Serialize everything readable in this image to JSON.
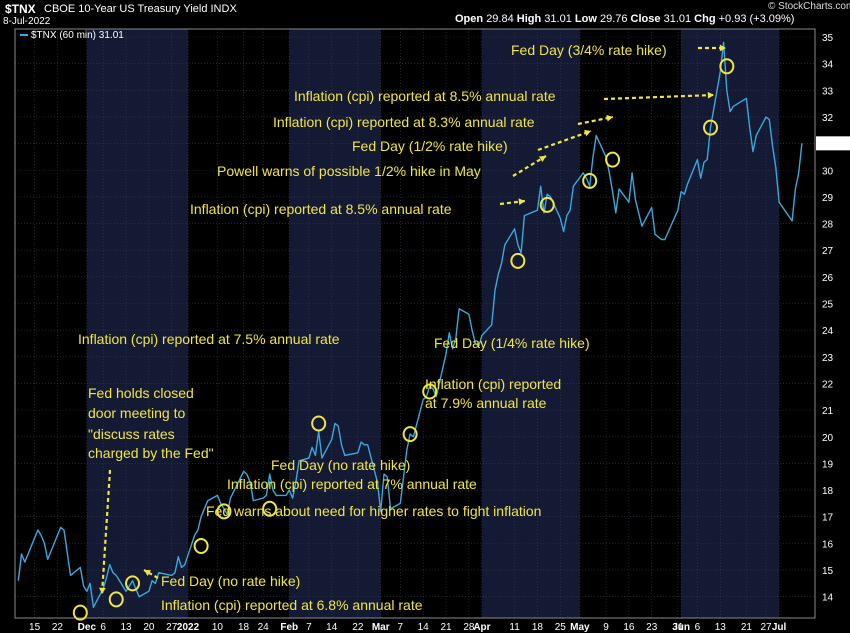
{
  "header": {
    "symbol": "$TNX",
    "title": "CBOE 10-Year US Treasury Yield INDX",
    "date": "8-Jul-2022",
    "open_label": "Open",
    "open": "29.84",
    "high_label": "High",
    "high": "31.01",
    "low_label": "Low",
    "low": "29.76",
    "close_label": "Close",
    "close": "31.01",
    "chg_label": "Chg",
    "chg": "+0.93 (+3.09%)",
    "credit": "© StockCharts.com"
  },
  "legend": {
    "label": "$TNX (60 min) 31.01"
  },
  "colors": {
    "line": "#39a8dc",
    "annotation": "#f0e641",
    "background": "#000000",
    "band_alt": "#141a33",
    "grid": "#3a3a50"
  },
  "chart_data": {
    "type": "line",
    "xlabel": "",
    "ylabel": "",
    "ylim": [
      13.2,
      35.3
    ],
    "y_ticks": [
      14,
      15,
      16,
      17,
      18,
      19,
      20,
      21,
      22,
      23,
      24,
      25,
      26,
      27,
      28,
      29,
      30,
      31,
      32,
      33,
      34,
      35
    ],
    "last_value_label": "31.01",
    "x_ticks": [
      {
        "label": "15",
        "date": "2021-11-15"
      },
      {
        "label": "22",
        "date": "2021-11-22"
      },
      {
        "label": "Dec",
        "date": "2021-12-01",
        "bold": true
      },
      {
        "label": "6",
        "date": "2021-12-06"
      },
      {
        "label": "13",
        "date": "2021-12-13"
      },
      {
        "label": "20",
        "date": "2021-12-20"
      },
      {
        "label": "27",
        "date": "2021-12-27"
      },
      {
        "label": "2022",
        "date": "2022-01-01",
        "bold": true
      },
      {
        "label": "10",
        "date": "2022-01-10"
      },
      {
        "label": "18",
        "date": "2022-01-18"
      },
      {
        "label": "24",
        "date": "2022-01-24"
      },
      {
        "label": "Feb",
        "date": "2022-02-01",
        "bold": true
      },
      {
        "label": "7",
        "date": "2022-02-07"
      },
      {
        "label": "14",
        "date": "2022-02-14"
      },
      {
        "label": "22",
        "date": "2022-02-22"
      },
      {
        "label": "Mar",
        "date": "2022-03-01",
        "bold": true
      },
      {
        "label": "7",
        "date": "2022-03-07"
      },
      {
        "label": "14",
        "date": "2022-03-14"
      },
      {
        "label": "21",
        "date": "2022-03-21"
      },
      {
        "label": "28",
        "date": "2022-03-28"
      },
      {
        "label": "Apr",
        "date": "2022-04-01",
        "bold": true
      },
      {
        "label": "11",
        "date": "2022-04-11"
      },
      {
        "label": "18",
        "date": "2022-04-18"
      },
      {
        "label": "25",
        "date": "2022-04-25"
      },
      {
        "label": "May",
        "date": "2022-05-01",
        "bold": true
      },
      {
        "label": "9",
        "date": "2022-05-09"
      },
      {
        "label": "16",
        "date": "2022-05-16"
      },
      {
        "label": "23",
        "date": "2022-05-23"
      },
      {
        "label": "31",
        "date": "2022-05-31"
      },
      {
        "label": "Jun",
        "date": "2022-06-01",
        "bold": true
      },
      {
        "label": "6",
        "date": "2022-06-06"
      },
      {
        "label": "13",
        "date": "2022-06-13"
      },
      {
        "label": "21",
        "date": "2022-06-21"
      },
      {
        "label": "27",
        "date": "2022-06-27"
      },
      {
        "label": "Jul",
        "date": "2022-07-01",
        "bold": true
      }
    ],
    "series": [
      {
        "name": "$TNX (60 min)",
        "points": [
          [
            "2021-11-10",
            14.6
          ],
          [
            "2021-11-11",
            15.6
          ],
          [
            "2021-11-12",
            15.3
          ],
          [
            "2021-11-15",
            16.2
          ],
          [
            "2021-11-16",
            16.5
          ],
          [
            "2021-11-17",
            16.3
          ],
          [
            "2021-11-18",
            16.0
          ],
          [
            "2021-11-19",
            15.4
          ],
          [
            "2021-11-22",
            16.3
          ],
          [
            "2021-11-23",
            16.6
          ],
          [
            "2021-11-24",
            16.5
          ],
          [
            "2021-11-26",
            14.8
          ],
          [
            "2021-11-29",
            15.1
          ],
          [
            "2021-11-30",
            14.4
          ],
          [
            "2021-12-01",
            14.2
          ],
          [
            "2021-12-02",
            14.5
          ],
          [
            "2021-12-03",
            13.6
          ],
          [
            "2021-12-06",
            14.3
          ],
          [
            "2021-12-07",
            14.7
          ],
          [
            "2021-12-08",
            15.2
          ],
          [
            "2021-12-09",
            14.9
          ],
          [
            "2021-12-10",
            14.8
          ],
          [
            "2021-12-13",
            14.2
          ],
          [
            "2021-12-14",
            14.4
          ],
          [
            "2021-12-15",
            14.6
          ],
          [
            "2021-12-16",
            14.3
          ],
          [
            "2021-12-17",
            14.0
          ],
          [
            "2021-12-20",
            14.2
          ],
          [
            "2021-12-21",
            14.6
          ],
          [
            "2021-12-22",
            14.5
          ],
          [
            "2021-12-23",
            14.9
          ],
          [
            "2021-12-27",
            14.8
          ],
          [
            "2021-12-28",
            14.9
          ],
          [
            "2021-12-29",
            15.5
          ],
          [
            "2021-12-30",
            15.1
          ],
          [
            "2021-12-31",
            15.2
          ],
          [
            "2022-01-03",
            16.3
          ],
          [
            "2022-01-04",
            16.5
          ],
          [
            "2022-01-05",
            17.0
          ],
          [
            "2022-01-06",
            17.3
          ],
          [
            "2022-01-07",
            17.6
          ],
          [
            "2022-01-10",
            17.8
          ],
          [
            "2022-01-11",
            17.5
          ],
          [
            "2022-01-12",
            17.3
          ],
          [
            "2022-01-13",
            17.1
          ],
          [
            "2022-01-14",
            17.7
          ],
          [
            "2022-01-18",
            18.7
          ],
          [
            "2022-01-19",
            18.6
          ],
          [
            "2022-01-20",
            18.3
          ],
          [
            "2022-01-21",
            17.6
          ],
          [
            "2022-01-24",
            17.7
          ],
          [
            "2022-01-25",
            17.8
          ],
          [
            "2022-01-26",
            18.6
          ],
          [
            "2022-01-27",
            18.0
          ],
          [
            "2022-01-28",
            17.8
          ],
          [
            "2022-01-31",
            17.8
          ],
          [
            "2022-02-01",
            18.0
          ],
          [
            "2022-02-02",
            17.7
          ],
          [
            "2022-02-03",
            18.3
          ],
          [
            "2022-02-04",
            19.1
          ],
          [
            "2022-02-07",
            19.2
          ],
          [
            "2022-02-08",
            19.6
          ],
          [
            "2022-02-09",
            19.3
          ],
          [
            "2022-02-10",
            20.2
          ],
          [
            "2022-02-11",
            19.2
          ],
          [
            "2022-02-14",
            19.9
          ],
          [
            "2022-02-15",
            20.5
          ],
          [
            "2022-02-16",
            20.4
          ],
          [
            "2022-02-17",
            19.7
          ],
          [
            "2022-02-18",
            19.3
          ],
          [
            "2022-02-22",
            19.4
          ],
          [
            "2022-02-23",
            19.8
          ],
          [
            "2022-02-24",
            19.7
          ],
          [
            "2022-02-25",
            19.7
          ],
          [
            "2022-02-28",
            18.3
          ],
          [
            "2022-03-01",
            17.2
          ],
          [
            "2022-03-02",
            18.6
          ],
          [
            "2022-03-03",
            18.5
          ],
          [
            "2022-03-04",
            17.3
          ],
          [
            "2022-03-07",
            17.5
          ],
          [
            "2022-03-08",
            18.5
          ],
          [
            "2022-03-09",
            19.5
          ],
          [
            "2022-03-10",
            20.1
          ],
          [
            "2022-03-11",
            20.0
          ],
          [
            "2022-03-14",
            21.4
          ],
          [
            "2022-03-15",
            21.5
          ],
          [
            "2022-03-16",
            21.9
          ],
          [
            "2022-03-17",
            21.8
          ],
          [
            "2022-03-18",
            21.5
          ],
          [
            "2022-03-21",
            23.1
          ],
          [
            "2022-03-22",
            23.9
          ],
          [
            "2022-03-23",
            23.3
          ],
          [
            "2022-03-24",
            23.7
          ],
          [
            "2022-03-25",
            24.8
          ],
          [
            "2022-03-28",
            24.6
          ],
          [
            "2022-03-29",
            24.0
          ],
          [
            "2022-03-30",
            23.5
          ],
          [
            "2022-03-31",
            23.4
          ],
          [
            "2022-04-01",
            23.8
          ],
          [
            "2022-04-04",
            24.2
          ],
          [
            "2022-04-05",
            25.5
          ],
          [
            "2022-04-06",
            26.1
          ],
          [
            "2022-04-07",
            26.5
          ],
          [
            "2022-04-08",
            27.2
          ],
          [
            "2022-04-11",
            27.8
          ],
          [
            "2022-04-12",
            27.2
          ],
          [
            "2022-04-13",
            26.9
          ],
          [
            "2022-04-14",
            28.3
          ],
          [
            "2022-04-18",
            28.5
          ],
          [
            "2022-04-19",
            29.4
          ],
          [
            "2022-04-20",
            28.4
          ],
          [
            "2022-04-21",
            29.1
          ],
          [
            "2022-04-22",
            29.0
          ],
          [
            "2022-04-25",
            28.2
          ],
          [
            "2022-04-26",
            27.7
          ],
          [
            "2022-04-27",
            28.3
          ],
          [
            "2022-04-28",
            28.5
          ],
          [
            "2022-04-29",
            29.4
          ],
          [
            "2022-05-02",
            29.9
          ],
          [
            "2022-05-03",
            29.7
          ],
          [
            "2022-05-04",
            29.4
          ],
          [
            "2022-05-05",
            30.5
          ],
          [
            "2022-05-06",
            31.3
          ],
          [
            "2022-05-09",
            30.5
          ],
          [
            "2022-05-10",
            29.9
          ],
          [
            "2022-05-11",
            29.2
          ],
          [
            "2022-05-12",
            28.4
          ],
          [
            "2022-05-13",
            29.3
          ],
          [
            "2022-05-16",
            28.8
          ],
          [
            "2022-05-17",
            29.9
          ],
          [
            "2022-05-18",
            28.9
          ],
          [
            "2022-05-19",
            28.4
          ],
          [
            "2022-05-20",
            27.9
          ],
          [
            "2022-05-23",
            28.6
          ],
          [
            "2022-05-24",
            27.6
          ],
          [
            "2022-05-25",
            27.5
          ],
          [
            "2022-05-26",
            27.4
          ],
          [
            "2022-05-27",
            27.4
          ],
          [
            "2022-05-31",
            28.5
          ],
          [
            "2022-06-01",
            29.2
          ],
          [
            "2022-06-02",
            29.1
          ],
          [
            "2022-06-03",
            29.5
          ],
          [
            "2022-06-06",
            30.4
          ],
          [
            "2022-06-07",
            29.7
          ],
          [
            "2022-06-08",
            30.3
          ],
          [
            "2022-06-09",
            30.4
          ],
          [
            "2022-06-10",
            31.6
          ],
          [
            "2022-06-13",
            33.7
          ],
          [
            "2022-06-14",
            34.8
          ],
          [
            "2022-06-15",
            33.0
          ],
          [
            "2022-06-16",
            32.2
          ],
          [
            "2022-06-17",
            32.4
          ],
          [
            "2022-06-21",
            32.7
          ],
          [
            "2022-06-22",
            31.6
          ],
          [
            "2022-06-23",
            30.7
          ],
          [
            "2022-06-24",
            31.3
          ],
          [
            "2022-06-27",
            32.0
          ],
          [
            "2022-06-28",
            31.9
          ],
          [
            "2022-06-29",
            30.9
          ],
          [
            "2022-06-30",
            30.1
          ],
          [
            "2022-07-01",
            28.8
          ],
          [
            "2022-07-05",
            28.1
          ],
          [
            "2022-07-06",
            29.3
          ],
          [
            "2022-07-07",
            29.9
          ],
          [
            "2022-07-08",
            31.01
          ]
        ]
      }
    ],
    "annotations": [
      {
        "text": "Fed Day (3/4% rate hike)",
        "date": "2022-06-15",
        "value": 33.9
      },
      {
        "text": "Inflation (cpi) reported at 8.5% annual rate",
        "date": "2022-06-10",
        "value": 31.6
      },
      {
        "text": "Inflation (cpi) reported at 8.3% annual rate",
        "date": "2022-05-11",
        "value": 30.4
      },
      {
        "text": "Fed Day (1/2% rate hike)",
        "date": "2022-05-04",
        "value": 29.6
      },
      {
        "text": "Powell warns of possible 1/2% hike in May",
        "date": "2022-04-21",
        "value": 28.7
      },
      {
        "text": "Inflation (cpi) reported at 8.5% annual rate",
        "date": "2022-04-12",
        "value": 26.6
      },
      {
        "text": "Inflation (cpi) reported at 7.5% annual rate",
        "date": "2022-02-10",
        "value": 20.5
      },
      {
        "text": "Fed Day (1/4% rate hike)",
        "date": "2022-03-16",
        "value": 21.7
      },
      {
        "text": "Inflation (cpi) reported at 7.9% annual rate",
        "date": "2022-03-10",
        "value": 20.1
      },
      {
        "text": "Fed holds closed door meeting to \"discuss rates charged by the Fed\"",
        "date": "2021-11-29",
        "value": 13.4
      },
      {
        "text": "Fed Day (no rate hike)",
        "date": "2022-01-26",
        "value": 17.3
      },
      {
        "text": "Inflation (cpi) reported at 7% annual rate",
        "date": "2022-01-12",
        "value": 17.2
      },
      {
        "text": "Fed warns about need for higher rates to fight inflation",
        "date": "2022-01-05",
        "value": 15.9
      },
      {
        "text": "Fed Day (no rate hike)",
        "date": "2021-12-15",
        "value": 14.5
      },
      {
        "text": "Inflation (cpi) reported at 6.8% annual rate",
        "date": "2021-12-10",
        "value": 13.9
      }
    ]
  }
}
